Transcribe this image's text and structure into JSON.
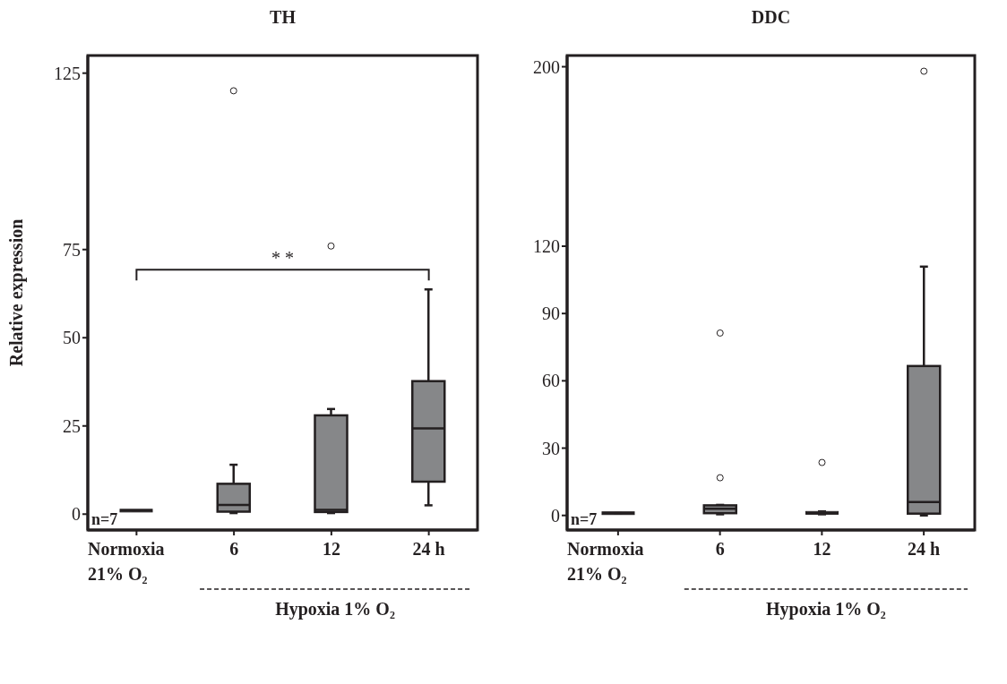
{
  "chart_data": [
    {
      "type": "box",
      "title": "TH",
      "ylabel": "Relative expression",
      "categories": [
        "Normoxia\n21% O₂",
        "6",
        "12",
        "24 h"
      ],
      "color": "#868789",
      "boxes": [
        {
          "low": 1,
          "q1": 1,
          "median": 1,
          "q3": 1,
          "high": 1
        },
        {
          "low": 0.3,
          "q1": 0.7,
          "median": 2.6,
          "q3": 8.6,
          "high": 14,
          "outliers": [
            120
          ]
        },
        {
          "low": 0.3,
          "q1": 0.6,
          "median": 1.2,
          "q3": 28,
          "high": 29.8,
          "outliers": [
            76
          ]
        },
        {
          "low": 2.5,
          "q1": 9.2,
          "median": 24.3,
          "q3": 37.7,
          "high": 63.7
        }
      ],
      "ylim": [
        -4.5,
        130
      ],
      "yticks": [
        0,
        25,
        50,
        75,
        125
      ],
      "annotations": [
        "n=7",
        "Hypoxia 1% O₂",
        "* *"
      ]
    },
    {
      "type": "box",
      "title": "DDC",
      "categories": [
        "Normoxia\n21% O₂",
        "6",
        "12",
        "24 h"
      ],
      "color": "#868789",
      "boxes": [
        {
          "low": 1,
          "q1": 1,
          "median": 1,
          "q3": 1,
          "high": 1
        },
        {
          "low": 0.5,
          "q1": 1,
          "median": 3,
          "q3": 4.5,
          "high": 4.7,
          "outliers": [
            16.8,
            81.3
          ]
        },
        {
          "low": 0.5,
          "q1": 0.8,
          "median": 1,
          "q3": 1.5,
          "high": 1.8,
          "outliers": [
            23.6
          ]
        },
        {
          "low": 0,
          "q1": 0.8,
          "median": 6,
          "q3": 66.6,
          "high": 110.9,
          "outliers": [
            198
          ]
        }
      ],
      "ylim": [
        -6.5,
        205
      ],
      "yticks": [
        0,
        30,
        60,
        90,
        120,
        200
      ],
      "annotations": [
        "n=7",
        "Hypoxia 1% O₂"
      ]
    }
  ]
}
